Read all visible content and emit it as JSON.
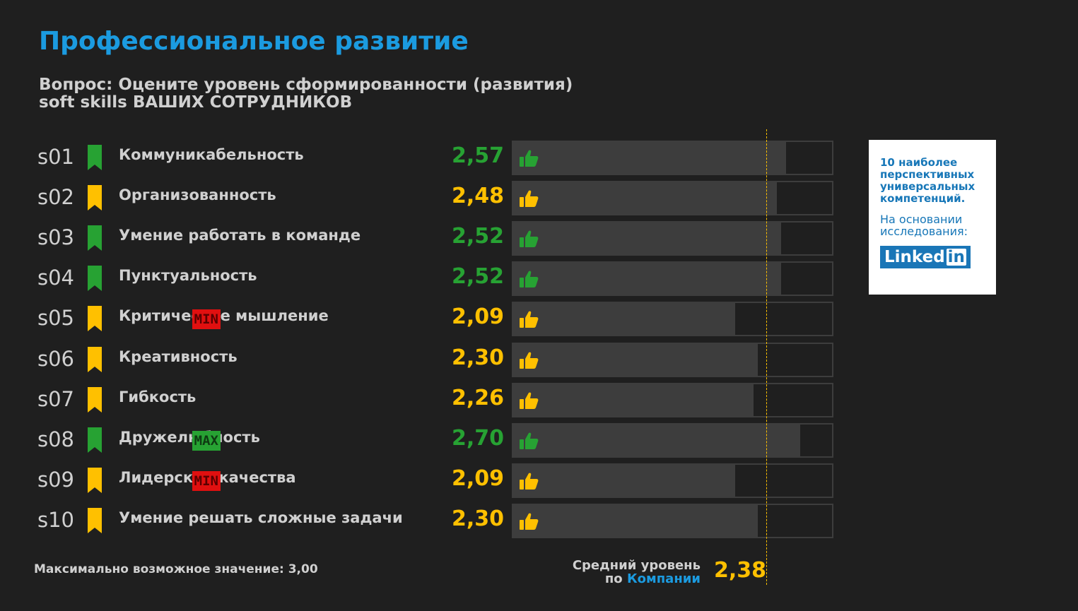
{
  "title": "Профессиональное развитие",
  "question": {
    "line1": "Вопрос: Оцените уровень сформированности (развития)",
    "line2": "soft skills ВАШИХ СОТРУДНИКОВ"
  },
  "colors": {
    "green": "#27a233",
    "yellow": "#ffc000",
    "accent": "#1b9be0",
    "min_badge": "#e01010",
    "max_badge": "#27a233"
  },
  "chart_data": {
    "type": "bar",
    "orientation": "horizontal",
    "xlim": [
      0,
      3.0
    ],
    "average": 2.38,
    "rows": [
      {
        "code": "s01",
        "label": "Коммуникабельность",
        "value": 2.57,
        "display": "2,57",
        "color": "green",
        "badge": ""
      },
      {
        "code": "s02",
        "label": "Организованность",
        "value": 2.48,
        "display": "2,48",
        "color": "yellow",
        "badge": ""
      },
      {
        "code": "s03",
        "label": "Умение работать в команде",
        "value": 2.52,
        "display": "2,52",
        "color": "green",
        "badge": ""
      },
      {
        "code": "s04",
        "label": "Пунктуальность",
        "value": 2.52,
        "display": "2,52",
        "color": "green",
        "badge": ""
      },
      {
        "code": "s05",
        "label": "Критическое мышление",
        "value": 2.09,
        "display": "2,09",
        "color": "yellow",
        "badge": "MIN"
      },
      {
        "code": "s06",
        "label": "Креативность",
        "value": 2.3,
        "display": "2,30",
        "color": "yellow",
        "badge": ""
      },
      {
        "code": "s07",
        "label": "Гибкость",
        "value": 2.26,
        "display": "2,26",
        "color": "yellow",
        "badge": ""
      },
      {
        "code": "s08",
        "label": "Дружелюбность",
        "value": 2.7,
        "display": "2,70",
        "color": "green",
        "badge": "MAX"
      },
      {
        "code": "s09",
        "label": "Лидерские качества",
        "value": 2.09,
        "display": "2,09",
        "color": "yellow",
        "badge": "MIN"
      },
      {
        "code": "s10",
        "label": "Умение решать сложные задачи",
        "value": 2.3,
        "display": "2,30",
        "color": "yellow",
        "badge": ""
      }
    ]
  },
  "footer": {
    "max_note": "Максимально возможное значение: 3,00",
    "avg_label_line1": "Средний уровень",
    "avg_label_prefix": "по ",
    "avg_label_accent": "Компании",
    "avg_value": "2,38"
  },
  "info_box": {
    "heading": [
      "10 наиболее",
      "перспективных",
      "универсальных",
      "компетенций."
    ],
    "sub": [
      "На основании",
      "исследования:"
    ],
    "logo_text": "Linked",
    "logo_in": "in"
  },
  "icons": {
    "bookmark": "bookmark-icon",
    "thumb": "thumbs-up-icon"
  }
}
